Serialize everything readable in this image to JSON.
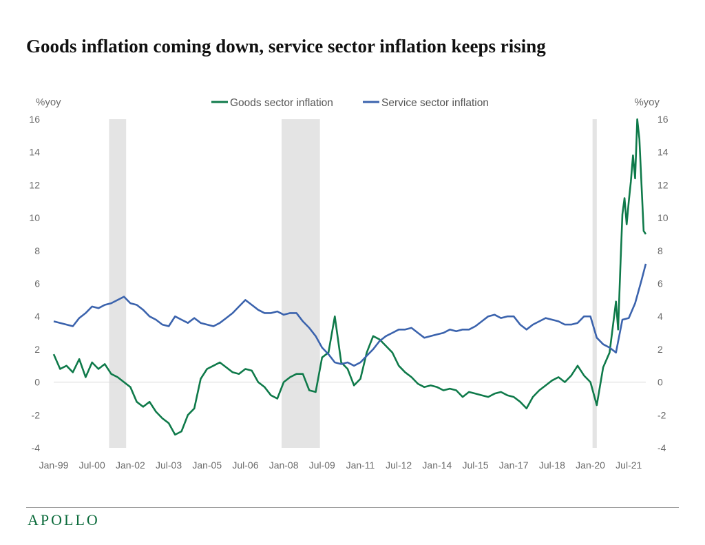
{
  "header": {
    "title": "Goods inflation coming down, service sector inflation keeps rising"
  },
  "footer": {
    "brand": "APOLLO"
  },
  "chart_data": {
    "type": "line",
    "title": "Goods inflation coming down, service sector inflation keeps rising",
    "ylabel_left": "%yoy",
    "ylabel_right": "%yoy",
    "ylim": [
      -4,
      16
    ],
    "yticks": [
      -4,
      -2,
      0,
      2,
      4,
      6,
      8,
      10,
      12,
      14,
      16
    ],
    "xlim": [
      "1999-01",
      "2022-03"
    ],
    "xtick_labels": [
      "Jan-99",
      "Jul-00",
      "Jan-02",
      "Jul-03",
      "Jan-05",
      "Jul-06",
      "Jan-08",
      "Jul-09",
      "Jan-11",
      "Jul-12",
      "Jan-14",
      "Jul-15",
      "Jan-17",
      "Jul-18",
      "Jan-20",
      "Jul-21"
    ],
    "xtick_dates": [
      "1999-01",
      "2000-07",
      "2002-01",
      "2003-07",
      "2005-01",
      "2006-07",
      "2008-01",
      "2009-07",
      "2011-01",
      "2012-07",
      "2014-01",
      "2015-07",
      "2017-01",
      "2018-07",
      "2020-01",
      "2021-07"
    ],
    "legend_position": "top-center",
    "recessions": [
      {
        "start": "2001-03",
        "end": "2001-11"
      },
      {
        "start": "2007-12",
        "end": "2009-06"
      },
      {
        "start": "2020-02",
        "end": "2020-04"
      }
    ],
    "series": [
      {
        "name": "Goods sector inflation",
        "color": "#0f7a4a",
        "x": [
          "1999-01",
          "1999-04",
          "1999-07",
          "1999-10",
          "2000-01",
          "2000-04",
          "2000-07",
          "2000-10",
          "2001-01",
          "2001-04",
          "2001-07",
          "2001-10",
          "2002-01",
          "2002-04",
          "2002-07",
          "2002-10",
          "2003-01",
          "2003-04",
          "2003-07",
          "2003-10",
          "2004-01",
          "2004-04",
          "2004-07",
          "2004-10",
          "2005-01",
          "2005-04",
          "2005-07",
          "2005-10",
          "2006-01",
          "2006-04",
          "2006-07",
          "2006-10",
          "2007-01",
          "2007-04",
          "2007-07",
          "2007-10",
          "2008-01",
          "2008-04",
          "2008-07",
          "2008-10",
          "2009-01",
          "2009-04",
          "2009-07",
          "2009-10",
          "2010-01",
          "2010-04",
          "2010-07",
          "2010-10",
          "2011-01",
          "2011-04",
          "2011-07",
          "2011-10",
          "2012-01",
          "2012-04",
          "2012-07",
          "2012-10",
          "2013-01",
          "2013-04",
          "2013-07",
          "2013-10",
          "2014-01",
          "2014-04",
          "2014-07",
          "2014-10",
          "2015-01",
          "2015-04",
          "2015-07",
          "2015-10",
          "2016-01",
          "2016-04",
          "2016-07",
          "2016-10",
          "2017-01",
          "2017-04",
          "2017-07",
          "2017-10",
          "2018-01",
          "2018-04",
          "2018-07",
          "2018-10",
          "2019-01",
          "2019-04",
          "2019-07",
          "2019-10",
          "2020-01",
          "2020-04",
          "2020-07",
          "2020-10",
          "2021-01",
          "2021-02",
          "2021-03",
          "2021-04",
          "2021-05",
          "2021-06",
          "2021-07",
          "2021-08",
          "2021-09",
          "2021-10",
          "2021-11",
          "2021-12",
          "2022-01",
          "2022-02",
          "2022-03"
        ],
        "values": [
          1.7,
          0.8,
          1.0,
          0.6,
          1.4,
          0.3,
          1.2,
          0.8,
          1.1,
          0.5,
          0.3,
          0.0,
          -0.3,
          -1.2,
          -1.5,
          -1.2,
          -1.8,
          -2.2,
          -2.5,
          -3.2,
          -3.0,
          -2.0,
          -1.6,
          0.2,
          0.8,
          1.0,
          1.2,
          0.9,
          0.6,
          0.5,
          0.8,
          0.7,
          0.0,
          -0.3,
          -0.8,
          -1.0,
          0.0,
          0.3,
          0.5,
          0.5,
          -0.5,
          -0.6,
          1.5,
          1.8,
          4.0,
          1.2,
          0.8,
          -0.2,
          0.2,
          1.8,
          2.8,
          2.6,
          2.2,
          1.8,
          1.0,
          0.6,
          0.3,
          -0.1,
          -0.3,
          -0.2,
          -0.3,
          -0.5,
          -0.4,
          -0.5,
          -0.9,
          -0.6,
          -0.7,
          -0.8,
          -0.9,
          -0.7,
          -0.6,
          -0.8,
          -0.9,
          -1.2,
          -1.6,
          -0.9,
          -0.5,
          -0.2,
          0.1,
          0.3,
          0.0,
          0.4,
          1.0,
          0.4,
          0.0,
          -1.4,
          0.9,
          1.8,
          4.9,
          3.2,
          6.8,
          10.2,
          11.2,
          9.6,
          11.0,
          12.2,
          13.8,
          12.4,
          16.0,
          14.8,
          12.0,
          9.2,
          9.0
        ]
      },
      {
        "name": "Service sector inflation",
        "color": "#3b63ad",
        "x": [
          "1999-01",
          "1999-04",
          "1999-07",
          "1999-10",
          "2000-01",
          "2000-04",
          "2000-07",
          "2000-10",
          "2001-01",
          "2001-04",
          "2001-07",
          "2001-10",
          "2002-01",
          "2002-04",
          "2002-07",
          "2002-10",
          "2003-01",
          "2003-04",
          "2003-07",
          "2003-10",
          "2004-01",
          "2004-04",
          "2004-07",
          "2004-10",
          "2005-01",
          "2005-04",
          "2005-07",
          "2005-10",
          "2006-01",
          "2006-04",
          "2006-07",
          "2006-10",
          "2007-01",
          "2007-04",
          "2007-07",
          "2007-10",
          "2008-01",
          "2008-04",
          "2008-07",
          "2008-10",
          "2009-01",
          "2009-04",
          "2009-07",
          "2009-10",
          "2010-01",
          "2010-04",
          "2010-07",
          "2010-10",
          "2011-01",
          "2011-04",
          "2011-07",
          "2011-10",
          "2012-01",
          "2012-04",
          "2012-07",
          "2012-10",
          "2013-01",
          "2013-04",
          "2013-07",
          "2013-10",
          "2014-01",
          "2014-04",
          "2014-07",
          "2014-10",
          "2015-01",
          "2015-04",
          "2015-07",
          "2015-10",
          "2016-01",
          "2016-04",
          "2016-07",
          "2016-10",
          "2017-01",
          "2017-04",
          "2017-07",
          "2017-10",
          "2018-01",
          "2018-04",
          "2018-07",
          "2018-10",
          "2019-01",
          "2019-04",
          "2019-07",
          "2019-10",
          "2020-01",
          "2020-04",
          "2020-07",
          "2020-10",
          "2021-01",
          "2021-04",
          "2021-07",
          "2021-10",
          "2022-01",
          "2022-03"
        ],
        "values": [
          3.7,
          3.6,
          3.5,
          3.4,
          3.9,
          4.2,
          4.6,
          4.5,
          4.7,
          4.8,
          5.0,
          5.2,
          4.8,
          4.7,
          4.4,
          4.0,
          3.8,
          3.5,
          3.4,
          4.0,
          3.8,
          3.6,
          3.9,
          3.6,
          3.5,
          3.4,
          3.6,
          3.9,
          4.2,
          4.6,
          5.0,
          4.7,
          4.4,
          4.2,
          4.2,
          4.3,
          4.1,
          4.2,
          4.2,
          3.7,
          3.3,
          2.8,
          2.1,
          1.7,
          1.2,
          1.1,
          1.2,
          1.0,
          1.2,
          1.6,
          2.0,
          2.5,
          2.8,
          3.0,
          3.2,
          3.2,
          3.3,
          3.0,
          2.7,
          2.8,
          2.9,
          3.0,
          3.2,
          3.1,
          3.2,
          3.2,
          3.4,
          3.7,
          4.0,
          4.1,
          3.9,
          4.0,
          4.0,
          3.5,
          3.2,
          3.5,
          3.7,
          3.9,
          3.8,
          3.7,
          3.5,
          3.5,
          3.6,
          4.0,
          4.0,
          2.7,
          2.3,
          2.1,
          1.8,
          3.8,
          3.9,
          4.8,
          6.2,
          7.2
        ]
      }
    ]
  }
}
